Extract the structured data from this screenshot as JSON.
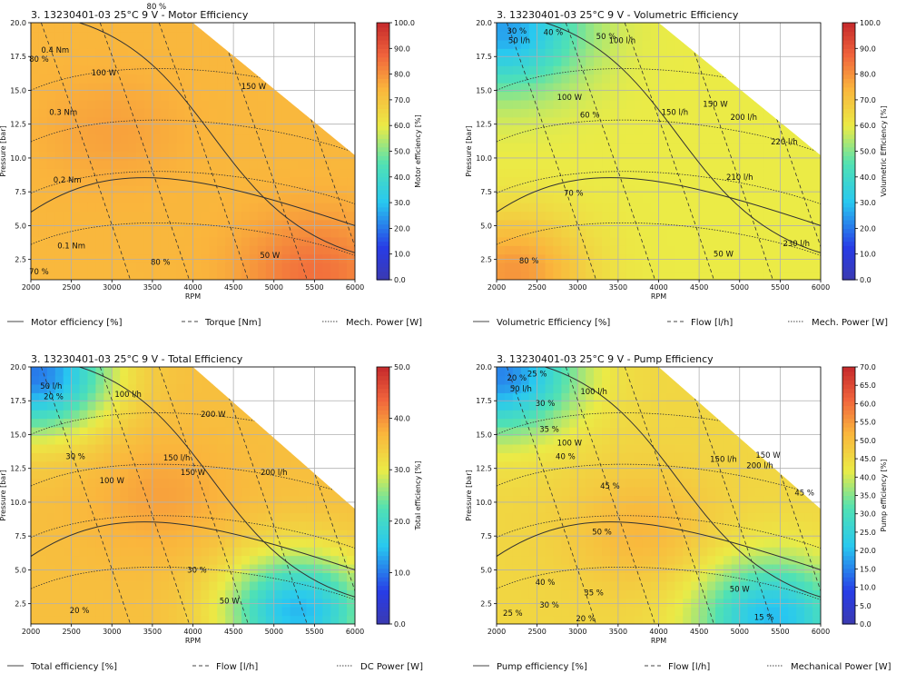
{
  "figure_title": "3. 13230401-03 25°C 9 V",
  "chart_data": [
    {
      "type": "contour",
      "title": "3. 13230401-03 25°C 9 V - Motor Efficiency",
      "xlabel": "RPM",
      "ylabel": "Pressure [bar]",
      "xlim": [
        2000,
        6000
      ],
      "ylim": [
        1,
        20
      ],
      "xticks": [
        "2000",
        "2500",
        "3000",
        "3500",
        "4000",
        "4500",
        "5000",
        "5500",
        "6000"
      ],
      "yticks": [
        "2.5",
        "5.0",
        "7.5",
        "10.0",
        "12.5",
        "15.0",
        "17.5",
        "20.0"
      ],
      "colorbar": {
        "label": "Motor efficiency [%]",
        "range": [
          0,
          100
        ],
        "ticks": [
          "0.0",
          "10.0",
          "20.0",
          "30.0",
          "40.0",
          "50.0",
          "60.0",
          "70.0",
          "80.0",
          "90.0",
          "100.0"
        ]
      },
      "fill": {
        "base": 74,
        "peaks": [
          {
            "x": 3000,
            "y": 12,
            "v": 78
          },
          {
            "x": 5500,
            "y": 1.5,
            "v": 86
          }
        ]
      },
      "contour_labels": [
        {
          "text": "80 %",
          "x": 3550,
          "y": 21
        },
        {
          "text": "0.4 Nm",
          "x": 2300,
          "y": 17.8
        },
        {
          "text": "80 %",
          "x": 2100,
          "y": 17.1
        },
        {
          "text": "100 W",
          "x": 2900,
          "y": 16.1
        },
        {
          "text": "150 W",
          "x": 4750,
          "y": 15.1
        },
        {
          "text": "0.3 Nm",
          "x": 2400,
          "y": 13.2
        },
        {
          "text": "0.2 Nm",
          "x": 2450,
          "y": 8.2
        },
        {
          "text": "0.1 Nm",
          "x": 2500,
          "y": 3.3
        },
        {
          "text": "50 W",
          "x": 4950,
          "y": 2.6
        },
        {
          "text": "80 %",
          "x": 3600,
          "y": 2.1
        },
        {
          "text": "70 %",
          "x": 2100,
          "y": 1.4
        }
      ],
      "legend": [
        "Motor efficiency [%]",
        "Torque [Nm]",
        "Mech. Power [W]"
      ]
    },
    {
      "type": "contour",
      "title": "3. 13230401-03 25°C 9 V - Volumetric Efficiency",
      "xlabel": "RPM",
      "ylabel": "Pressure [bar]",
      "xlim": [
        2000,
        6000
      ],
      "ylim": [
        1,
        20
      ],
      "xticks": [
        "2000",
        "2500",
        "3000",
        "3500",
        "4000",
        "4500",
        "5000",
        "5500",
        "6000"
      ],
      "yticks": [
        "2.5",
        "5.0",
        "7.5",
        "10.0",
        "12.5",
        "15.0",
        "17.5",
        "20.0"
      ],
      "colorbar": {
        "label": "Volumetric Efficiency [%]",
        "range": [
          0,
          100
        ],
        "ticks": [
          "0.0",
          "10.0",
          "20.0",
          "30.0",
          "40.0",
          "50.0",
          "60.0",
          "70.0",
          "80.0",
          "90.0",
          "100.0"
        ]
      },
      "fill": {
        "base": 60,
        "peaks": [
          {
            "x": 2200,
            "y": 1.5,
            "v": 80
          },
          {
            "x": 2100,
            "y": 19.5,
            "v": 25
          }
        ]
      },
      "contour_labels": [
        {
          "text": "30 %",
          "x": 2250,
          "y": 19.2
        },
        {
          "text": "40 %",
          "x": 2700,
          "y": 19.1
        },
        {
          "text": "50 l/h",
          "x": 2280,
          "y": 18.5
        },
        {
          "text": "100 l/h",
          "x": 3550,
          "y": 18.5
        },
        {
          "text": "50 %",
          "x": 3350,
          "y": 18.8
        },
        {
          "text": "100 W",
          "x": 2900,
          "y": 14.3
        },
        {
          "text": "150 W",
          "x": 4700,
          "y": 13.8
        },
        {
          "text": "60 %",
          "x": 3150,
          "y": 13.0
        },
        {
          "text": "150 l/h",
          "x": 4200,
          "y": 13.2
        },
        {
          "text": "200 l/h",
          "x": 5050,
          "y": 12.8
        },
        {
          "text": "220 l/h",
          "x": 5550,
          "y": 11.0
        },
        {
          "text": "210 l/h",
          "x": 5000,
          "y": 8.4
        },
        {
          "text": "70 %",
          "x": 2950,
          "y": 7.2
        },
        {
          "text": "230 l/h",
          "x": 5700,
          "y": 3.5
        },
        {
          "text": "50 W",
          "x": 4800,
          "y": 2.7
        },
        {
          "text": "80 %",
          "x": 2400,
          "y": 2.2
        }
      ],
      "legend": [
        "Volumetric Efficiency [%]",
        "Flow [l/h]",
        "Mech. Power [W]"
      ]
    },
    {
      "type": "contour",
      "title": "3. 13230401-03 25°C 9 V - Total Efficiency",
      "xlabel": "RPM",
      "ylabel": "Pressure [bar]",
      "xlim": [
        2000,
        6000
      ],
      "ylim": [
        1,
        20
      ],
      "xticks": [
        "2000",
        "2500",
        "3000",
        "3500",
        "4000",
        "4500",
        "5000",
        "5500",
        "6000"
      ],
      "yticks": [
        "2.5",
        "5.0",
        "7.5",
        "10.0",
        "12.5",
        "15.0",
        "17.5",
        "20.0"
      ],
      "colorbar": {
        "label": "Total efficiency [%]",
        "range": [
          0,
          50
        ],
        "ticks": [
          "0.0",
          "10.0",
          "20.0",
          "30.0",
          "40.0",
          "50.0"
        ]
      },
      "fill": {
        "base": 36,
        "peaks": [
          {
            "x": 3600,
            "y": 10.5,
            "v": 39
          },
          {
            "x": 5300,
            "y": 2.0,
            "v": 14
          },
          {
            "x": 2050,
            "y": 19.5,
            "v": 10
          }
        ]
      },
      "contour_labels": [
        {
          "text": "50 l/h",
          "x": 2250,
          "y": 18.4
        },
        {
          "text": "20 %",
          "x": 2280,
          "y": 17.6
        },
        {
          "text": "100 l/h",
          "x": 3200,
          "y": 17.8
        },
        {
          "text": "200 W",
          "x": 4250,
          "y": 16.3
        },
        {
          "text": "30 %",
          "x": 2550,
          "y": 13.2
        },
        {
          "text": "150 l/h",
          "x": 3800,
          "y": 13.1
        },
        {
          "text": "150 W",
          "x": 4000,
          "y": 12.0
        },
        {
          "text": "200 l/h",
          "x": 5000,
          "y": 12.0
        },
        {
          "text": "100 W",
          "x": 3000,
          "y": 11.4
        },
        {
          "text": "30 %",
          "x": 4050,
          "y": 4.8
        },
        {
          "text": "50 W",
          "x": 4450,
          "y": 2.5
        },
        {
          "text": "20 %",
          "x": 2600,
          "y": 1.8
        }
      ],
      "legend": [
        "Total efficiency [%]",
        "Flow [l/h]",
        "DC Power [W]"
      ]
    },
    {
      "type": "contour",
      "title": "3. 13230401-03 25°C 9 V - Pump Efficiency",
      "xlabel": "RPM",
      "ylabel": "Pressure [bar]",
      "xlim": [
        2000,
        6000
      ],
      "ylim": [
        1,
        20
      ],
      "xticks": [
        "2000",
        "2500",
        "3000",
        "3500",
        "4000",
        "4500",
        "5000",
        "5500",
        "6000"
      ],
      "yticks": [
        "2.5",
        "5.0",
        "7.5",
        "10.0",
        "12.5",
        "15.0",
        "17.5",
        "20.0"
      ],
      "colorbar": {
        "label": "Pump efficiency [%]",
        "range": [
          0,
          70
        ],
        "ticks": [
          "0.0",
          "5.0",
          "10.0",
          "15.0",
          "20.0",
          "25.0",
          "30.0",
          "35.0",
          "40.0",
          "45.0",
          "50.0",
          "55.0",
          "60.0",
          "65.0",
          "70.0"
        ]
      },
      "fill": {
        "base": 46,
        "peaks": [
          {
            "x": 3800,
            "y": 8.0,
            "v": 52
          },
          {
            "x": 5400,
            "y": 1.5,
            "v": 20
          },
          {
            "x": 2050,
            "y": 19.5,
            "v": 15
          }
        ]
      },
      "contour_labels": [
        {
          "text": "20 %",
          "x": 2250,
          "y": 19.0
        },
        {
          "text": "25 %",
          "x": 2500,
          "y": 19.3
        },
        {
          "text": "30 %",
          "x": 2600,
          "y": 17.1
        },
        {
          "text": "50 l/h",
          "x": 2300,
          "y": 18.2
        },
        {
          "text": "100 l/h",
          "x": 3200,
          "y": 18.0
        },
        {
          "text": "35 %",
          "x": 2650,
          "y": 15.2
        },
        {
          "text": "100 W",
          "x": 2900,
          "y": 14.2
        },
        {
          "text": "40 %",
          "x": 2850,
          "y": 13.2
        },
        {
          "text": "150 l/h",
          "x": 4800,
          "y": 13.0
        },
        {
          "text": "150 W",
          "x": 5350,
          "y": 13.3
        },
        {
          "text": "200 l/h",
          "x": 5250,
          "y": 12.5
        },
        {
          "text": "45 %",
          "x": 3400,
          "y": 11.0
        },
        {
          "text": "45 %",
          "x": 5800,
          "y": 10.5
        },
        {
          "text": "50 %",
          "x": 3300,
          "y": 7.6
        },
        {
          "text": "40 %",
          "x": 2600,
          "y": 3.9
        },
        {
          "text": "35 %",
          "x": 3200,
          "y": 3.1
        },
        {
          "text": "30 %",
          "x": 2650,
          "y": 2.2
        },
        {
          "text": "50 W",
          "x": 5000,
          "y": 3.4
        },
        {
          "text": "25 %",
          "x": 2200,
          "y": 1.6
        },
        {
          "text": "20 %",
          "x": 3100,
          "y": 1.2
        },
        {
          "text": "15 %",
          "x": 5300,
          "y": 1.3
        }
      ],
      "legend": [
        "Pump efficiency [%]",
        "Flow [l/h]",
        "Mechanical Power [W]"
      ]
    }
  ]
}
